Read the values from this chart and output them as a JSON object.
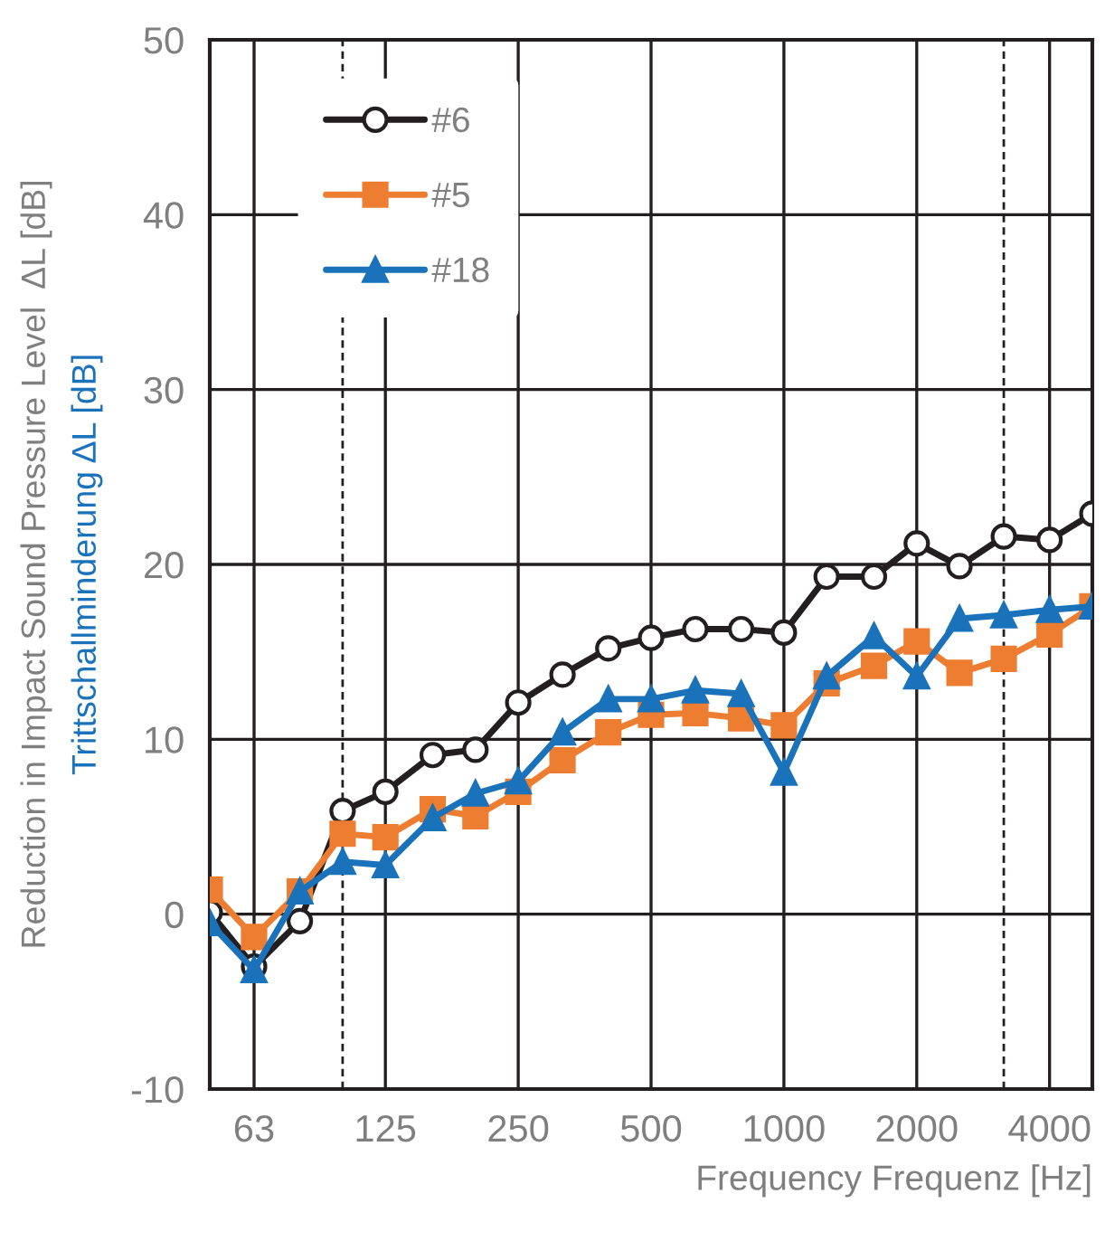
{
  "chart_data": {
    "type": "line",
    "xlabel": "Frequency Frequenz [Hz]",
    "ylabel": "Reduction in Impact Sound Pressure Level  ΔL [dB]",
    "annotations": [
      "Trittschallminderung ΔL [dB]"
    ],
    "x": [
      50,
      63,
      80,
      100,
      125,
      160,
      200,
      250,
      315,
      400,
      500,
      630,
      800,
      1000,
      1250,
      1600,
      2000,
      2500,
      3150,
      4000,
      5000
    ],
    "series": [
      {
        "name": "#6",
        "color": "#231f20",
        "marker": "circle",
        "values": [
          0.1,
          -3.0,
          -0.4,
          5.9,
          7.0,
          9.1,
          9.4,
          12.1,
          13.7,
          15.2,
          15.8,
          16.3,
          16.3,
          16.1,
          19.3,
          19.3,
          21.2,
          19.9,
          21.6,
          21.4,
          22.9
        ]
      },
      {
        "name": "#5",
        "color": "#ed7d31",
        "marker": "square",
        "values": [
          1.4,
          -1.3,
          1.3,
          4.6,
          4.4,
          6.0,
          5.6,
          7.0,
          8.8,
          10.4,
          11.4,
          11.5,
          11.2,
          10.8,
          13.2,
          14.2,
          15.6,
          13.8,
          14.6,
          16.0,
          17.6
        ]
      },
      {
        "name": "#18",
        "color": "#1a72bb",
        "marker": "triangle",
        "values": [
          -0.5,
          -3.2,
          1.3,
          3.0,
          2.8,
          5.5,
          6.9,
          7.6,
          10.4,
          12.3,
          12.3,
          12.8,
          12.6,
          8.1,
          13.6,
          15.9,
          13.6,
          16.9,
          17.1,
          17.4,
          17.6
        ]
      }
    ],
    "log": "x",
    "xlim": [
      50,
      5000
    ],
    "xticks": [
      63,
      125,
      250,
      500,
      1000,
      2000,
      4000
    ],
    "ylim": [
      -10,
      50
    ],
    "yticks": [
      -10,
      0,
      10,
      20,
      30,
      40,
      50
    ],
    "ref_lines": [
      {
        "axis": "x",
        "value": 100,
        "color": "#231f20",
        "line_style": "dashed"
      },
      {
        "axis": "x",
        "value": 3150,
        "color": "#231f20",
        "line_style": "dashed"
      }
    ],
    "grid": true,
    "legend": "top left"
  }
}
